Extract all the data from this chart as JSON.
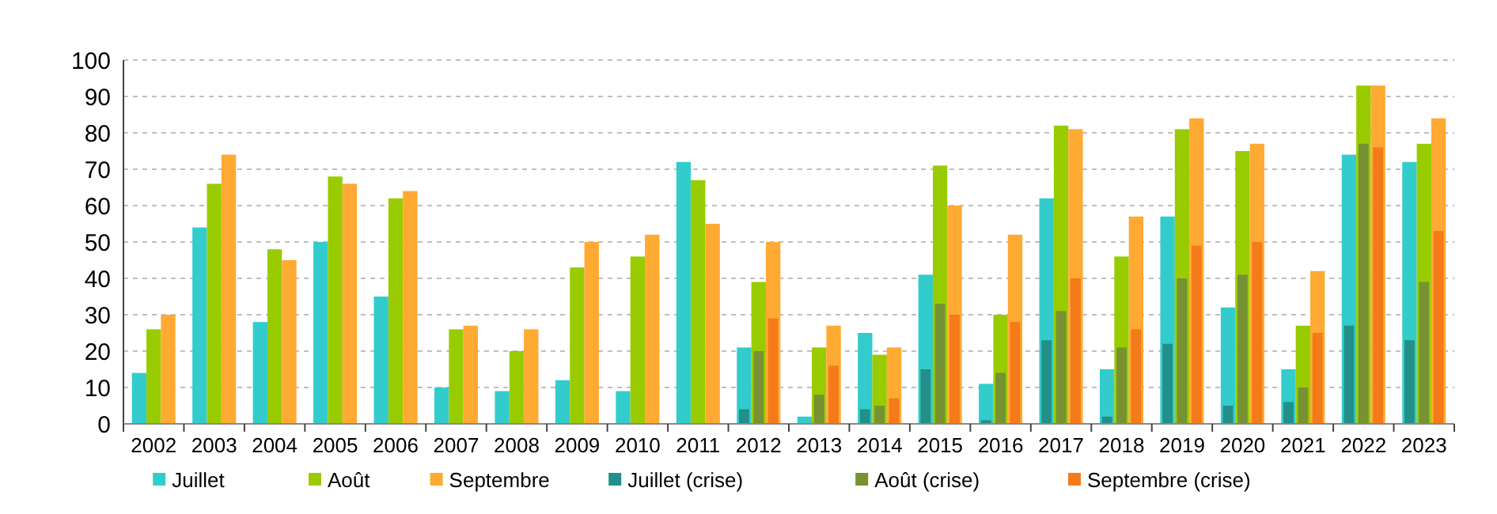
{
  "chart_data": {
    "type": "bar",
    "categories": [
      "2002",
      "2003",
      "2004",
      "2005",
      "2006",
      "2007",
      "2008",
      "2009",
      "2010",
      "2011",
      "2012",
      "2013",
      "2014",
      "2015",
      "2016",
      "2017",
      "2018",
      "2019",
      "2020",
      "2021",
      "2022",
      "2023"
    ],
    "series": [
      {
        "name": "Juillet",
        "color": "#33cccc",
        "values": [
          14,
          54,
          28,
          50,
          35,
          10,
          9,
          12,
          9,
          72,
          21,
          2,
          25,
          41,
          11,
          62,
          15,
          57,
          32,
          15,
          74,
          72
        ]
      },
      {
        "name": "Août",
        "color": "#99cc00",
        "values": [
          26,
          66,
          48,
          68,
          62,
          26,
          20,
          43,
          46,
          67,
          39,
          21,
          19,
          71,
          30,
          82,
          46,
          81,
          75,
          27,
          93,
          77
        ]
      },
      {
        "name": "Septembre",
        "color": "#ffaa33",
        "values": [
          30,
          74,
          45,
          66,
          64,
          27,
          26,
          50,
          52,
          55,
          50,
          27,
          21,
          60,
          52,
          81,
          57,
          84,
          77,
          42,
          93,
          84
        ]
      },
      {
        "name": "Juillet (crise)",
        "color": "#229088",
        "values": [
          null,
          null,
          null,
          null,
          null,
          null,
          null,
          null,
          null,
          null,
          4,
          null,
          4,
          15,
          1,
          23,
          2,
          22,
          5,
          6,
          27,
          23
        ]
      },
      {
        "name": "Août (crise)",
        "color": "#779133",
        "values": [
          null,
          null,
          null,
          null,
          null,
          null,
          null,
          null,
          null,
          null,
          20,
          8,
          5,
          33,
          14,
          31,
          21,
          40,
          41,
          10,
          77,
          39
        ]
      },
      {
        "name": "Septembre (crise)",
        "color": "#f47a1a",
        "values": [
          null,
          null,
          null,
          null,
          null,
          null,
          null,
          null,
          null,
          null,
          29,
          16,
          7,
          30,
          28,
          40,
          26,
          49,
          50,
          25,
          76,
          53
        ]
      }
    ],
    "ylim": [
      0,
      100
    ],
    "yticks": [
      0,
      10,
      20,
      30,
      40,
      50,
      60,
      70,
      80,
      90,
      100
    ],
    "grid": "y",
    "legend": "bottom"
  }
}
